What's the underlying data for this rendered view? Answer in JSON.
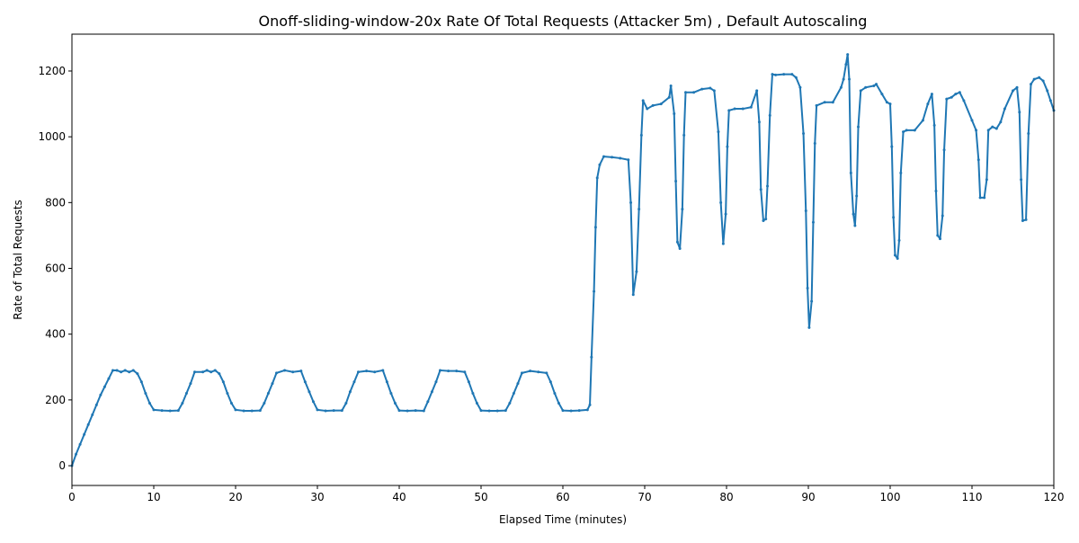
{
  "chart_data": {
    "type": "line",
    "title": "Onoff-sliding-window-20x Rate Of Total Requests (Attacker 5m) , Default Autoscaling",
    "x_label": "Elapsed Time (minutes)",
    "y_label": "Rate of Total Requests",
    "xlim": [
      0,
      120
    ],
    "ylim": [
      -60,
      1312
    ],
    "xticks": [
      0,
      10,
      20,
      30,
      40,
      50,
      60,
      70,
      80,
      90,
      100,
      110,
      120
    ],
    "yticks": [
      0,
      200,
      400,
      600,
      800,
      1000,
      1200
    ],
    "grid": false,
    "series": [
      {
        "name": "Rate of Total Requests",
        "color": "#1f77b4",
        "x": [
          0,
          0.5,
          1,
          1.5,
          2,
          2.5,
          3,
          3.5,
          4,
          4.5,
          5,
          5.5,
          6,
          6.5,
          7,
          7.5,
          8,
          8.5,
          9,
          9.5,
          10,
          11,
          12,
          13,
          13.5,
          14,
          14.5,
          15,
          16,
          16.5,
          17,
          17.5,
          18,
          18.5,
          19,
          19.5,
          20,
          21,
          22,
          23,
          23.5,
          24,
          24.5,
          25,
          26,
          27,
          28,
          28.5,
          29,
          29.5,
          30,
          31,
          32,
          33,
          33.5,
          34,
          34.5,
          35,
          36,
          37,
          38,
          38.5,
          39,
          39.5,
          40,
          41,
          42,
          43,
          43.5,
          44,
          44.5,
          45,
          46,
          47,
          48,
          48.5,
          49,
          49.5,
          50,
          51,
          52,
          53,
          53.5,
          54,
          54.5,
          55,
          56,
          57,
          58,
          58.5,
          59,
          59.5,
          60,
          61,
          62,
          63,
          63.3,
          63.5,
          63.8,
          64,
          64.2,
          64.5,
          65,
          66,
          67,
          68,
          68.3,
          68.6,
          69,
          69.3,
          69.6,
          69.8,
          70.3,
          71,
          72,
          73,
          73.2,
          73.6,
          73.8,
          74,
          74.3,
          74.6,
          74.8,
          75,
          76,
          77,
          78,
          78.5,
          79,
          79.3,
          79.6,
          79.9,
          80.1,
          80.3,
          81,
          82,
          83,
          83.7,
          84,
          84.2,
          84.5,
          84.8,
          85,
          85.3,
          85.6,
          86,
          87,
          88,
          88.5,
          89,
          89.4,
          89.7,
          89.9,
          90.1,
          90.4,
          90.6,
          90.8,
          91,
          92,
          93,
          94,
          94.3,
          94.6,
          94.8,
          95,
          95.2,
          95.5,
          95.7,
          95.9,
          96.1,
          96.4,
          97,
          98,
          98.3,
          99,
          99.6,
          100,
          100.2,
          100.4,
          100.6,
          100.9,
          101.1,
          101.3,
          101.6,
          102,
          103,
          104,
          104.6,
          105.1,
          105.4,
          105.6,
          105.8,
          106.1,
          106.4,
          106.6,
          106.9,
          107.5,
          108,
          108.5,
          109,
          110,
          110.5,
          110.8,
          111,
          111.5,
          111.8,
          112,
          112.5,
          113,
          113.5,
          114,
          115,
          115.5,
          115.8,
          116,
          116.2,
          116.6,
          116.9,
          117.2,
          117.6,
          118.2,
          118.7,
          119.2,
          119.6,
          120
        ],
        "values": [
          0,
          35,
          65,
          95,
          125,
          155,
          185,
          215,
          240,
          265,
          290,
          290,
          285,
          290,
          285,
          290,
          280,
          255,
          220,
          190,
          170,
          168,
          167,
          168,
          190,
          220,
          250,
          285,
          285,
          290,
          285,
          290,
          280,
          255,
          220,
          190,
          170,
          167,
          167,
          168,
          190,
          220,
          250,
          282,
          290,
          285,
          288,
          255,
          225,
          195,
          170,
          167,
          168,
          168,
          190,
          225,
          255,
          285,
          288,
          285,
          290,
          255,
          220,
          190,
          168,
          167,
          168,
          167,
          195,
          225,
          255,
          290,
          288,
          288,
          285,
          255,
          220,
          190,
          168,
          167,
          167,
          168,
          190,
          220,
          250,
          282,
          288,
          285,
          282,
          255,
          220,
          190,
          168,
          167,
          168,
          170,
          185,
          330,
          530,
          725,
          875,
          915,
          940,
          938,
          935,
          930,
          800,
          520,
          590,
          780,
          1005,
          1110,
          1085,
          1095,
          1100,
          1120,
          1155,
          1070,
          865,
          680,
          660,
          780,
          1005,
          1135,
          1135,
          1145,
          1148,
          1140,
          1015,
          800,
          675,
          765,
          970,
          1080,
          1085,
          1085,
          1090,
          1140,
          1045,
          840,
          745,
          750,
          850,
          1065,
          1190,
          1188,
          1190,
          1190,
          1180,
          1150,
          1010,
          775,
          540,
          420,
          500,
          740,
          980,
          1095,
          1105,
          1105,
          1150,
          1175,
          1220,
          1250,
          1175,
          890,
          765,
          730,
          820,
          1030,
          1140,
          1150,
          1155,
          1160,
          1130,
          1105,
          1100,
          970,
          755,
          640,
          630,
          685,
          890,
          1015,
          1020,
          1020,
          1050,
          1100,
          1130,
          1035,
          835,
          700,
          690,
          760,
          960,
          1115,
          1120,
          1130,
          1135,
          1110,
          1050,
          1020,
          930,
          815,
          815,
          870,
          1020,
          1030,
          1025,
          1045,
          1085,
          1140,
          1150,
          1075,
          870,
          745,
          748,
          1010,
          1160,
          1175,
          1180,
          1170,
          1140,
          1110,
          1080
        ]
      }
    ]
  }
}
